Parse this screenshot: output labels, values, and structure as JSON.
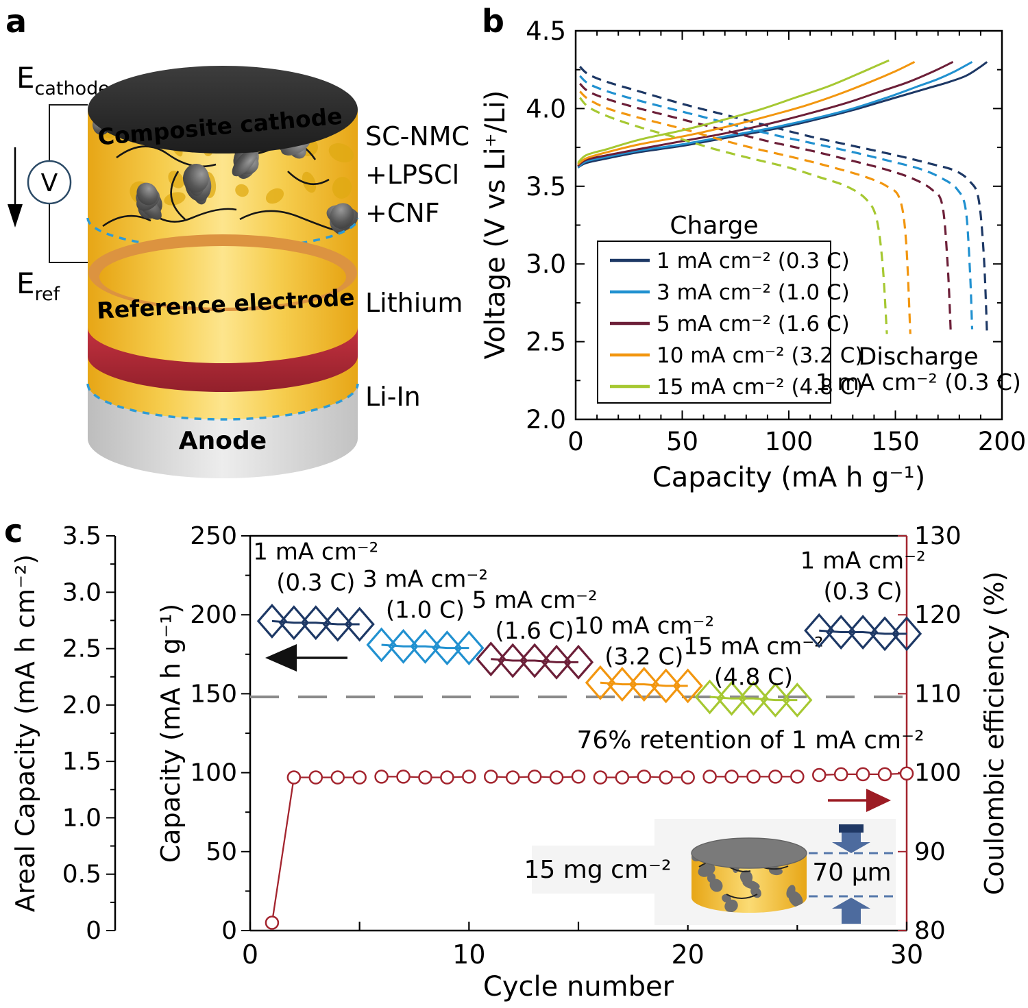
{
  "panels": {
    "a": {
      "label": "a",
      "probe_top": {
        "main": "E",
        "sub": "cathode"
      },
      "probe_bottom": {
        "main": "E",
        "sub": "ref"
      },
      "voltmeter_label": "V",
      "cathode_cap_label": "Composite cathode",
      "reference_label": "Reference electrode",
      "anode_label": "Anode",
      "cathode_materials": [
        "SC-NMC",
        "+LPSCl",
        "+CNF"
      ],
      "reference_material": "Lithium",
      "anode_material": "Li-In",
      "colors": {
        "lithium_text": "#c00000",
        "cap_black": "#2a2a2a",
        "ring_orange": "#dc9340",
        "band_red": "#b12836",
        "dashed_blue": "#2e9bd6"
      }
    },
    "b": {
      "label": "b"
    },
    "c": {
      "label": "c"
    }
  },
  "chart_data": [
    {
      "panel": "b",
      "type": "line",
      "xlabel": "Capacity (mA h g⁻¹)",
      "ylabel": "Voltage (V vs Li⁺/Li)",
      "xlim": [
        0,
        200
      ],
      "ylim": [
        2.0,
        4.5
      ],
      "xticks": [
        0,
        50,
        100,
        150,
        200
      ],
      "x_minor_step": 10,
      "yticks": [
        "2.0",
        "2.5",
        "3.0",
        "3.5",
        "4.0",
        "4.5"
      ],
      "y_minor_step": 0.25,
      "grid": "off",
      "legend": {
        "title": "Charge",
        "position": "inside-bottom-left",
        "items": [
          {
            "label": "1 mA cm⁻² (0.3 C)",
            "color": "#1d3865"
          },
          {
            "label": "3 mA cm⁻² (1.0 C)",
            "color": "#2191d0"
          },
          {
            "label": "5 mA cm⁻² (1.6 C)",
            "color": "#6c1f38"
          },
          {
            "label": "10 mA cm⁻² (3.2 C)",
            "color": "#f2960f"
          },
          {
            "label": "15 mA cm⁻² (4.8 C)",
            "color": "#a6c832"
          }
        ]
      },
      "annotation": {
        "line1": "Discharge",
        "line2": "1 mA cm⁻² (0.3 C)"
      },
      "series": [
        {
          "name": "1 mA cm⁻² (0.3 C)",
          "color": "#1d3865",
          "charge": [
            [
              1,
              3.62
            ],
            [
              5,
              3.65
            ],
            [
              15,
              3.68
            ],
            [
              30,
              3.72
            ],
            [
              50,
              3.76
            ],
            [
              70,
              3.81
            ],
            [
              90,
              3.86
            ],
            [
              110,
              3.92
            ],
            [
              130,
              3.99
            ],
            [
              150,
              4.07
            ],
            [
              165,
              4.13
            ],
            [
              175,
              4.17
            ],
            [
              183,
              4.21
            ],
            [
              189,
              4.26
            ],
            [
              193,
              4.3
            ]
          ],
          "discharge": [
            [
              2,
              4.27
            ],
            [
              6,
              4.22
            ],
            [
              15,
              4.17
            ],
            [
              30,
              4.11
            ],
            [
              50,
              4.03
            ],
            [
              70,
              3.96
            ],
            [
              90,
              3.89
            ],
            [
              110,
              3.82
            ],
            [
              130,
              3.76
            ],
            [
              150,
              3.7
            ],
            [
              165,
              3.65
            ],
            [
              178,
              3.6
            ],
            [
              185,
              3.53
            ],
            [
              189,
              3.42
            ],
            [
              191.5,
              3.05
            ],
            [
              193,
              2.55
            ]
          ]
        },
        {
          "name": "3 mA cm⁻² (1.0 C)",
          "color": "#2191d0",
          "charge": [
            [
              1,
              3.62
            ],
            [
              5,
              3.66
            ],
            [
              15,
              3.69
            ],
            [
              30,
              3.73
            ],
            [
              50,
              3.77
            ],
            [
              70,
              3.82
            ],
            [
              90,
              3.87
            ],
            [
              110,
              3.93
            ],
            [
              130,
              4.0
            ],
            [
              148,
              4.08
            ],
            [
              160,
              4.14
            ],
            [
              170,
              4.19
            ],
            [
              178,
              4.24
            ],
            [
              186,
              4.3
            ]
          ],
          "discharge": [
            [
              2,
              4.21
            ],
            [
              6,
              4.16
            ],
            [
              15,
              4.11
            ],
            [
              30,
              4.05
            ],
            [
              50,
              3.98
            ],
            [
              70,
              3.91
            ],
            [
              90,
              3.84
            ],
            [
              110,
              3.78
            ],
            [
              130,
              3.72
            ],
            [
              148,
              3.66
            ],
            [
              162,
              3.61
            ],
            [
              172,
              3.55
            ],
            [
              179,
              3.48
            ],
            [
              183,
              3.35
            ],
            [
              185,
              2.95
            ],
            [
              186,
              2.58
            ]
          ]
        },
        {
          "name": "5 mA cm⁻² (1.6 C)",
          "color": "#6c1f38",
          "charge": [
            [
              1,
              3.63
            ],
            [
              5,
              3.67
            ],
            [
              15,
              3.7
            ],
            [
              30,
              3.74
            ],
            [
              50,
              3.79
            ],
            [
              70,
              3.84
            ],
            [
              90,
              3.9
            ],
            [
              110,
              3.97
            ],
            [
              128,
              4.04
            ],
            [
              143,
              4.11
            ],
            [
              156,
              4.17
            ],
            [
              168,
              4.24
            ],
            [
              177,
              4.3
            ]
          ],
          "discharge": [
            [
              2,
              4.16
            ],
            [
              6,
              4.11
            ],
            [
              15,
              4.06
            ],
            [
              30,
              4.0
            ],
            [
              50,
              3.93
            ],
            [
              70,
              3.86
            ],
            [
              90,
              3.79
            ],
            [
              110,
              3.73
            ],
            [
              128,
              3.67
            ],
            [
              145,
              3.61
            ],
            [
              158,
              3.55
            ],
            [
              167,
              3.48
            ],
            [
              172,
              3.38
            ],
            [
              174.5,
              3.0
            ],
            [
              176,
              2.55
            ]
          ]
        },
        {
          "name": "10 mA cm⁻² (3.2 C)",
          "color": "#f2960f",
          "charge": [
            [
              1,
              3.64
            ],
            [
              5,
              3.68
            ],
            [
              15,
              3.72
            ],
            [
              30,
              3.77
            ],
            [
              50,
              3.82
            ],
            [
              70,
              3.88
            ],
            [
              90,
              3.95
            ],
            [
              108,
              4.02
            ],
            [
              123,
              4.09
            ],
            [
              138,
              4.17
            ],
            [
              150,
              4.24
            ],
            [
              159,
              4.3
            ]
          ],
          "discharge": [
            [
              2,
              4.11
            ],
            [
              6,
              4.06
            ],
            [
              15,
              4.0
            ],
            [
              30,
              3.94
            ],
            [
              50,
              3.87
            ],
            [
              68,
              3.8
            ],
            [
              85,
              3.74
            ],
            [
              104,
              3.68
            ],
            [
              121,
              3.62
            ],
            [
              136,
              3.56
            ],
            [
              146,
              3.5
            ],
            [
              152,
              3.42
            ],
            [
              155,
              3.15
            ],
            [
              157,
              2.55
            ]
          ]
        },
        {
          "name": "15 mA cm⁻² (4.8 C)",
          "color": "#a6c832",
          "charge": [
            [
              1,
              3.65
            ],
            [
              5,
              3.7
            ],
            [
              15,
              3.74
            ],
            [
              30,
              3.8
            ],
            [
              50,
              3.86
            ],
            [
              70,
              3.93
            ],
            [
              88,
              4.0
            ],
            [
              103,
              4.07
            ],
            [
              118,
              4.14
            ],
            [
              132,
              4.22
            ],
            [
              142,
              4.28
            ],
            [
              147,
              4.31
            ]
          ],
          "discharge": [
            [
              2,
              4.07
            ],
            [
              6,
              4.01
            ],
            [
              15,
              3.95
            ],
            [
              30,
              3.88
            ],
            [
              48,
              3.81
            ],
            [
              65,
              3.74
            ],
            [
              82,
              3.68
            ],
            [
              100,
              3.62
            ],
            [
              114,
              3.56
            ],
            [
              127,
              3.5
            ],
            [
              136,
              3.42
            ],
            [
              141,
              3.3
            ],
            [
              144,
              3.0
            ],
            [
              146,
              2.55
            ]
          ]
        }
      ]
    },
    {
      "panel": "c",
      "type": "scatter-line",
      "xlabel": "Cycle number",
      "xlim": [
        0,
        30
      ],
      "xticks": [
        0,
        10,
        20,
        30
      ],
      "xminor": [
        5,
        15,
        25
      ],
      "axis_left_outer": {
        "label": "Areal Capacity (mA h cm⁻²)",
        "lim": [
          0,
          3.5
        ],
        "ticks": [
          "0",
          "0.5",
          "1.0",
          "1.5",
          "2.0",
          "2.5",
          "3.0",
          "3.5"
        ]
      },
      "axis_left": {
        "label": "Capacity (mA h g⁻¹)",
        "lim": [
          0,
          250
        ],
        "ticks": [
          0,
          50,
          100,
          150,
          200,
          250
        ]
      },
      "axis_right": {
        "label": "Coulombic efficiency (%)",
        "lim": [
          80,
          130
        ],
        "ticks": [
          80,
          90,
          100,
          110,
          120,
          130
        ],
        "color": "#a3242e"
      },
      "capacity_groups": [
        {
          "annotation": [
            "1 mA cm⁻²",
            "(0.3 C)"
          ],
          "color": "#1d3865",
          "cycles": [
            1,
            2,
            3,
            4,
            5
          ],
          "values": [
            196,
            195,
            195,
            194,
            194
          ],
          "label_cycle": 3,
          "label_dy": [
            -92,
            -47
          ]
        },
        {
          "annotation": [
            "3 mA cm⁻²",
            "(1.0 C)"
          ],
          "color": "#2191d0",
          "cycles": [
            6,
            7,
            8,
            9,
            10
          ],
          "values": [
            181,
            180,
            180,
            179,
            179
          ],
          "label_cycle": 8,
          "label_dy": [
            -87,
            -42
          ]
        },
        {
          "annotation": [
            "5 mA cm⁻²",
            "(1.6 C)"
          ],
          "color": "#6c1f38",
          "cycles": [
            11,
            12,
            13,
            14,
            15
          ],
          "values": [
            172,
            171,
            171,
            170,
            170
          ],
          "label_cycle": 13,
          "label_dy": [
            -77,
            -32
          ]
        },
        {
          "annotation": [
            "10 mA cm⁻²",
            "(3.2 C)"
          ],
          "color": "#f2960f",
          "cycles": [
            16,
            17,
            18,
            19,
            20
          ],
          "values": [
            157,
            156,
            156,
            155,
            155
          ],
          "label_cycle": 18,
          "label_dy": [
            -74,
            -29
          ]
        },
        {
          "annotation": [
            "15 mA cm⁻²",
            "(4.8 C)"
          ],
          "color": "#a6c832",
          "cycles": [
            21,
            22,
            23,
            24,
            25
          ],
          "values": [
            148,
            147,
            147,
            146,
            146
          ],
          "label_cycle": 23,
          "label_dy": [
            -65,
            -20
          ]
        },
        {
          "annotation": [
            "1 mA cm⁻²",
            "(0.3 C)"
          ],
          "color": "#1d3865",
          "cycles": [
            26,
            27,
            28,
            29,
            30
          ],
          "values": [
            190,
            189,
            189,
            188,
            188
          ],
          "label_cycle": 28,
          "label_dy": [
            -93,
            -48
          ]
        }
      ],
      "coulombic_efficiency": {
        "color": "#a3242e",
        "segments": [
          {
            "cycles": [
              1,
              2,
              3,
              4,
              5
            ],
            "values": [
              81,
              99.4,
              99.4,
              99.4,
              99.4
            ]
          },
          {
            "cycles": [
              6,
              7,
              8,
              9,
              10
            ],
            "values": [
              99.5,
              99.5,
              99.4,
              99.4,
              99.5
            ]
          },
          {
            "cycles": [
              11,
              12,
              13,
              14,
              15
            ],
            "values": [
              99.5,
              99.4,
              99.5,
              99.4,
              99.5
            ]
          },
          {
            "cycles": [
              16,
              17,
              18,
              19,
              20
            ],
            "values": [
              99.4,
              99.4,
              99.5,
              99.4,
              99.4
            ]
          },
          {
            "cycles": [
              21,
              22,
              23,
              24,
              25
            ],
            "values": [
              99.5,
              99.5,
              99.5,
              99.5,
              99.5
            ]
          },
          {
            "cycles": [
              26,
              27,
              28,
              29,
              30
            ],
            "values": [
              99.7,
              99.8,
              99.8,
              99.8,
              99.9
            ]
          }
        ]
      },
      "retention_line": {
        "value": 148,
        "label": "76% retention of 1 mA cm⁻²",
        "color": "#8a8a8a"
      },
      "arrows": {
        "left_color": "#111111",
        "right_color": "#9c1c24"
      },
      "inset": {
        "mass_label": "15 mg cm⁻²",
        "thickness_label": "70 µm",
        "text_color": "#5f5f5f",
        "arrow_color": "#4d6b9e",
        "cap_color": "#1f3864"
      }
    }
  ]
}
